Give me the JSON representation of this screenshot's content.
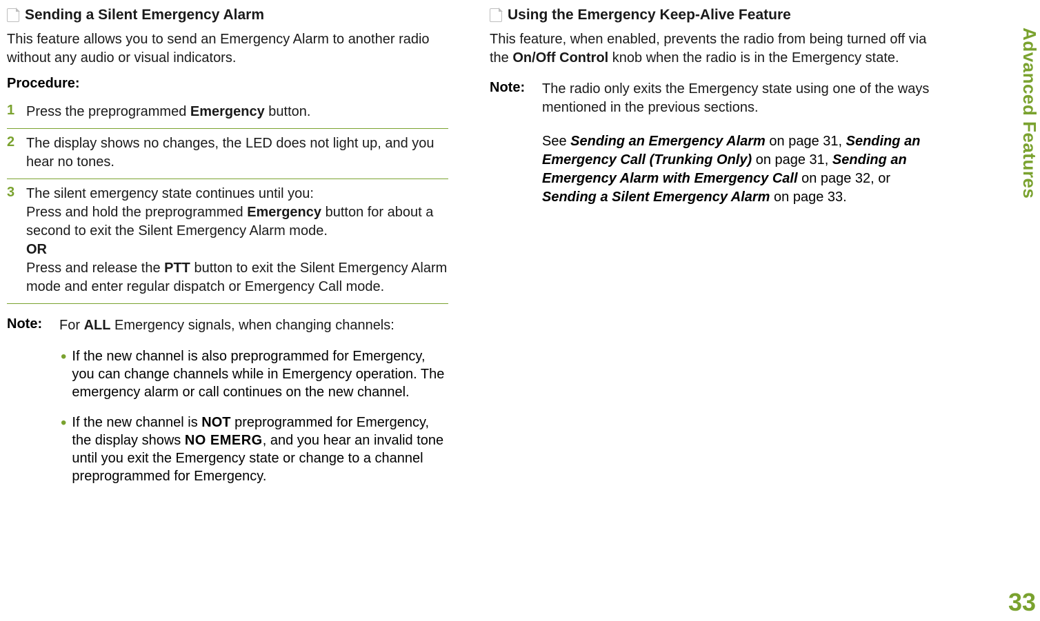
{
  "colors": {
    "accent": "#7aa22f",
    "text": "#1a1a1a",
    "icon_border": "#bdbdbd",
    "background": "#ffffff"
  },
  "typography": {
    "body_fontsize": 20,
    "heading_fontsize": 21,
    "sidetab_fontsize": 26,
    "pagenum_fontsize": 36
  },
  "side_tab": "Advanced Features",
  "page_number": "33",
  "left": {
    "heading": "Sending a Silent Emergency Alarm",
    "intro": "This feature allows you to send an Emergency Alarm to another radio without any audio or visual indicators.",
    "procedure_label": "Procedure:",
    "steps": {
      "1": {
        "num": "1",
        "pre": "Press the preprogrammed ",
        "bold1": "Emergency",
        "post": " button."
      },
      "2": {
        "num": "2",
        "text": "The display shows no changes, the LED does not light up, and you hear no tones."
      },
      "3": {
        "num": "3",
        "line1": "The silent emergency state continues until you:",
        "line2_pre": "Press and hold the preprogrammed ",
        "line2_bold": "Emergency",
        "line2_post": " button for about a second to exit the Silent Emergency Alarm mode.",
        "or": "OR",
        "line3_pre": "Press and release the ",
        "line3_bold": "PTT",
        "line3_post": " button to exit the Silent Emergency Alarm mode and enter regular dispatch or Emergency Call mode."
      }
    },
    "note_label": "Note:",
    "note_pre": "For ",
    "note_bold": "ALL",
    "note_post": " Emergency signals, when changing channels:",
    "bullets": {
      "1": "If the new channel is also preprogrammed for Emergency, you can change channels while in Emergency operation. The emergency alarm or call continues on the new channel.",
      "2_pre": "If the new channel is ",
      "2_bold1": "NOT",
      "2_mid1": " preprogrammed for Emergency, the display shows ",
      "2_mono": "NO EMERG",
      "2_post": ", and you hear an invalid tone until you exit the Emergency state or change to a channel preprogrammed for Emergency."
    }
  },
  "right": {
    "heading": "Using the Emergency Keep-Alive Feature",
    "intro_pre": "This feature, when enabled, prevents the radio from being turned off via the ",
    "intro_bold": "On/Off Control",
    "intro_post": " knob when the radio is in the Emergency state.",
    "note_label": "Note:",
    "note_text": "The radio only exits the Emergency state using one of the ways mentioned in the previous sections.",
    "refs": {
      "see": "See ",
      "r1": "Sending an Emergency Alarm",
      "p1": " on page 31, ",
      "r2": "Sending an Emergency Call (Trunking Only)",
      "p2": " on page 31, ",
      "r3": "Sending an Emergency Alarm with Emergency Call",
      "p3": " on page 32, or ",
      "r4": "Sending a Silent Emergency Alarm",
      "p4": " on page 33."
    }
  }
}
